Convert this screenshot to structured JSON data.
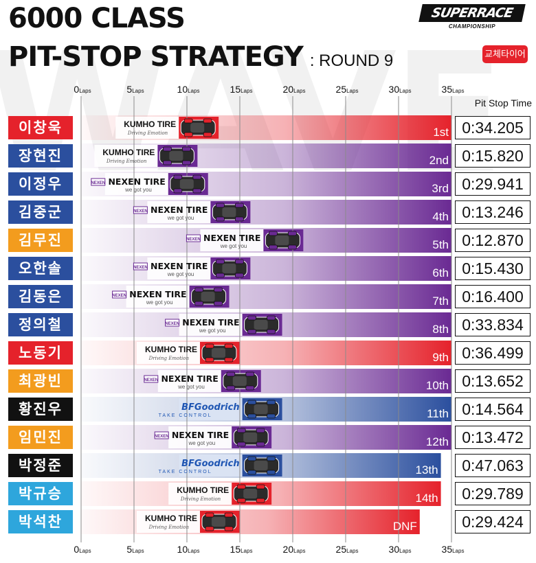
{
  "header": {
    "title_line1": "6000 CLASS",
    "title_line2": "PIT-STOP STRATEGY",
    "round": ": ROUND 9",
    "logo_main": "SUPERRACE",
    "logo_sub": "CHAMPIONSHIP",
    "tire_change_badge": "교체타이어",
    "pit_stop_time_header": "Pit Stop Time",
    "watermark": "WAVE"
  },
  "colors": {
    "kumho": "#e5222b",
    "nexen": "#6a2a93",
    "bfgoodrich": "#2b4f9e",
    "name_red": "#e5222b",
    "name_blue": "#2b4f9e",
    "name_orange": "#f39c1e",
    "name_black": "#111111",
    "name_sky": "#2ea6dc"
  },
  "tire_labels": {
    "kumho": "KUMHO TIRE",
    "kumho_tag": "Driving Emotion",
    "nexen": "NEXEN TIRE",
    "nexen_tag": "we got you",
    "nexen_box": "NEXEN",
    "bfgoodrich": "BFGoodrich",
    "bfgoodrich_tag": "TAKE CONTROL"
  },
  "chart_data": {
    "type": "bar",
    "xlabel": "",
    "ylabel": "",
    "x_unit": "Laps",
    "xlim": [
      0,
      35
    ],
    "ticks": [
      0,
      5,
      10,
      15,
      20,
      25,
      30,
      35
    ],
    "series": [
      {
        "driver": "이창욱",
        "name_color": "name_red",
        "tire": "kumho",
        "pit_lap": 13,
        "finish_laps": 35,
        "position": "1st",
        "pit_time": "0:34.205"
      },
      {
        "driver": "장현진",
        "name_color": "name_blue",
        "tire": "nexen",
        "pit_lap": 11,
        "finish_laps": 35,
        "position": "2nd",
        "pit_time": "0:15.820",
        "pit_logo": "kumho"
      },
      {
        "driver": "이정우",
        "name_color": "name_blue",
        "tire": "nexen",
        "pit_lap": 12,
        "finish_laps": 35,
        "position": "3rd",
        "pit_time": "0:29.941",
        "pit_logo": "nexen"
      },
      {
        "driver": "김중군",
        "name_color": "name_blue",
        "tire": "nexen",
        "pit_lap": 16,
        "finish_laps": 35,
        "position": "4th",
        "pit_time": "0:13.246",
        "pit_logo": "nexen"
      },
      {
        "driver": "김무진",
        "name_color": "name_orange",
        "tire": "nexen",
        "pit_lap": 21,
        "finish_laps": 35,
        "position": "5th",
        "pit_time": "0:12.870",
        "pit_logo": "nexen"
      },
      {
        "driver": "오한솔",
        "name_color": "name_blue",
        "tire": "nexen",
        "pit_lap": 16,
        "finish_laps": 35,
        "position": "6th",
        "pit_time": "0:15.430",
        "pit_logo": "nexen"
      },
      {
        "driver": "김동은",
        "name_color": "name_blue",
        "tire": "nexen",
        "pit_lap": 14,
        "finish_laps": 35,
        "position": "7th",
        "pit_time": "0:16.400",
        "pit_logo": "nexen"
      },
      {
        "driver": "정의철",
        "name_color": "name_blue",
        "tire": "nexen",
        "pit_lap": 19,
        "finish_laps": 35,
        "position": "8th",
        "pit_time": "0:33.834",
        "pit_logo": "nexen"
      },
      {
        "driver": "노동기",
        "name_color": "name_red",
        "tire": "kumho",
        "pit_lap": 15,
        "finish_laps": 35,
        "position": "9th",
        "pit_time": "0:36.499"
      },
      {
        "driver": "최광빈",
        "name_color": "name_orange",
        "tire": "nexen",
        "pit_lap": 17,
        "finish_laps": 35,
        "position": "10th",
        "pit_time": "0:13.652",
        "pit_logo": "nexen"
      },
      {
        "driver": "황진우",
        "name_color": "name_black",
        "tire": "bfgoodrich",
        "pit_lap": 19,
        "finish_laps": 35,
        "position": "11th",
        "pit_time": "0:14.564"
      },
      {
        "driver": "임민진",
        "name_color": "name_orange",
        "tire": "nexen",
        "pit_lap": 18,
        "finish_laps": 35,
        "position": "12th",
        "pit_time": "0:13.472",
        "pit_logo": "nexen"
      },
      {
        "driver": "박정준",
        "name_color": "name_black",
        "tire": "bfgoodrich",
        "pit_lap": 19,
        "finish_laps": 34,
        "position": "13th",
        "pit_time": "0:47.063"
      },
      {
        "driver": "박규승",
        "name_color": "name_sky",
        "tire": "kumho",
        "pit_lap": 18,
        "finish_laps": 34,
        "position": "14th",
        "pit_time": "0:29.789"
      },
      {
        "driver": "박석찬",
        "name_color": "name_sky",
        "tire": "kumho",
        "pit_lap": 15,
        "finish_laps": 32,
        "position": "DNF",
        "pit_time": "0:29.424"
      }
    ]
  }
}
